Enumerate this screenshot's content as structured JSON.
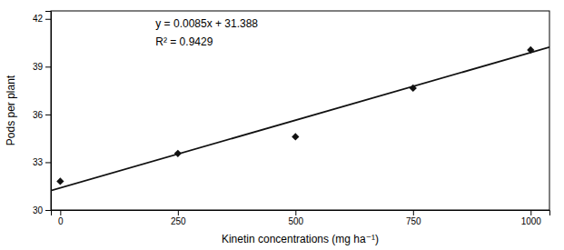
{
  "chart_data": {
    "type": "scatter",
    "xlabel": "Kinetin concentrations (mg ha⁻¹)",
    "ylabel": "Pods per plant",
    "xlim": [
      -20,
      1040
    ],
    "ylim": [
      30,
      42.5
    ],
    "xticks": [
      0,
      250,
      500,
      750,
      1000
    ],
    "yticks": [
      30,
      33,
      36,
      39,
      42
    ],
    "grid": false,
    "series": [
      {
        "type": "scatter",
        "marker": "diamond",
        "color": "#111111",
        "x": [
          0,
          250,
          500,
          750,
          1000
        ],
        "values": [
          31.8,
          33.55,
          34.6,
          37.65,
          40.05
        ]
      },
      {
        "type": "line",
        "line_style": "solid",
        "color": "#111111",
        "x": [
          -20,
          1040
        ],
        "values": [
          31.218,
          40.228
        ]
      }
    ],
    "annotations": [
      "y = 0.0085x + 31.388",
      "R² = 0.9429"
    ]
  }
}
